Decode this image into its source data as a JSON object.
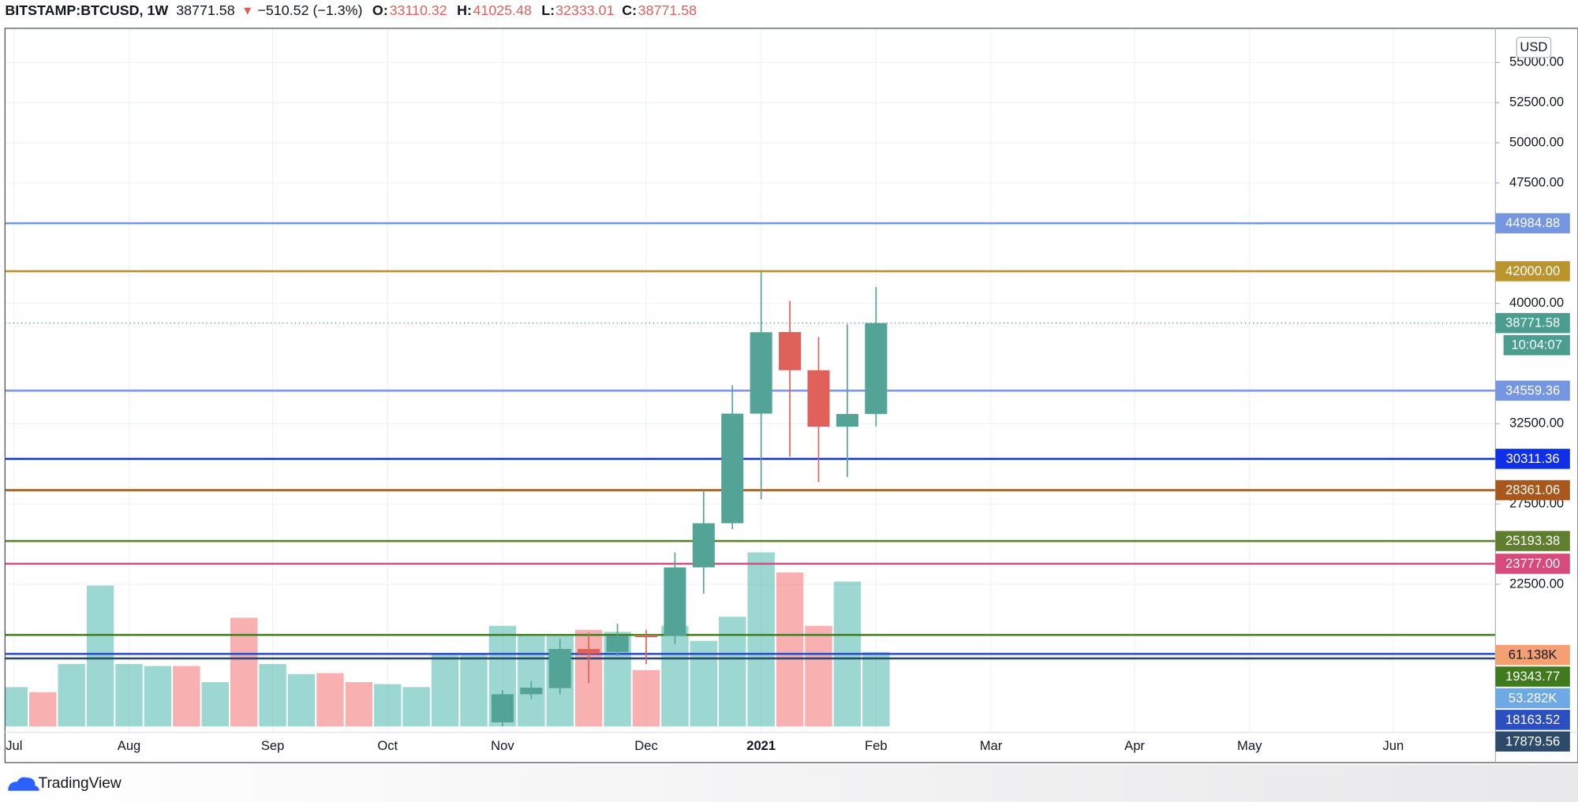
{
  "header": {
    "symbol": "BITSTAMP:BTCUSD, 1W",
    "arrow": "▼",
    "change": "−510.52 (−1.3%)",
    "o_label": "O:",
    "h_label": "H:",
    "l_label": "L:",
    "c_label": "C:"
  },
  "chart_data": {
    "type": "candlestick",
    "categories": [
      "Jul",
      null,
      null,
      null,
      "Aug",
      null,
      null,
      null,
      null,
      "Sep",
      null,
      null,
      null,
      "Oct",
      null,
      null,
      null,
      "Nov",
      null,
      null,
      null,
      null,
      "Dec",
      null,
      null,
      null,
      "2021",
      null,
      null,
      null,
      "Feb",
      null,
      null,
      null,
      "Mar",
      null,
      null,
      null,
      null,
      "Apr",
      null,
      null,
      null,
      "May",
      null,
      null,
      null,
      null,
      "Jun",
      null,
      null,
      null
    ],
    "open": [
      null,
      null,
      null,
      null,
      null,
      null,
      null,
      null,
      null,
      null,
      null,
      null,
      null,
      null,
      null,
      null,
      null,
      13900,
      15650,
      16030,
      18470,
      18280,
      19350,
      19290,
      23550,
      26300,
      33130,
      38210,
      35830,
      32320,
      33110.32,
      null,
      null,
      null,
      null,
      null,
      null,
      null,
      null,
      null,
      null,
      null,
      null,
      null,
      null,
      null,
      null,
      null,
      null,
      null,
      null,
      null
    ],
    "high": [
      null,
      null,
      null,
      null,
      null,
      null,
      null,
      null,
      null,
      null,
      null,
      null,
      null,
      null,
      null,
      null,
      null,
      15900,
      16460,
      19100,
      19480,
      20040,
      19660,
      24490,
      28370,
      34900,
      41970,
      40150,
      37900,
      38700,
      41025.48,
      null,
      null,
      null,
      null,
      null,
      null,
      null,
      null,
      null,
      null,
      null,
      null,
      null,
      null,
      null,
      null,
      null,
      null,
      null,
      null,
      null
    ],
    "low": [
      null,
      null,
      null,
      null,
      null,
      null,
      null,
      null,
      null,
      null,
      null,
      null,
      null,
      null,
      null,
      null,
      null,
      13650,
      15340,
      15650,
      16350,
      18030,
      17530,
      18780,
      21920,
      25930,
      27800,
      30440,
      28870,
      29190,
      32333.01,
      null,
      null,
      null,
      null,
      null,
      null,
      null,
      null,
      null,
      null,
      null,
      null,
      null,
      null,
      null,
      null,
      null,
      null,
      null,
      null,
      null
    ],
    "close": [
      null,
      null,
      null,
      null,
      null,
      null,
      null,
      null,
      null,
      null,
      null,
      null,
      null,
      null,
      null,
      null,
      null,
      15650,
      16060,
      18470,
      18180,
      19290,
      19200,
      23550,
      26300,
      33130,
      38200,
      35830,
      32320,
      33110,
      38771.58,
      null,
      null,
      null,
      null,
      null,
      null,
      null,
      null,
      null,
      null,
      null,
      null,
      null,
      null,
      null,
      null,
      null,
      null,
      null,
      null,
      null
    ],
    "volume": [
      39000,
      34000,
      62000,
      140000,
      62000,
      60000,
      60000,
      44000,
      108000,
      62000,
      52000,
      53000,
      44000,
      42000,
      39000,
      72000,
      72000,
      100000,
      90000,
      90000,
      96000,
      94000,
      56000,
      100000,
      85000,
      109000,
      173000,
      153000,
      100000,
      144000,
      74000,
      null,
      null,
      null,
      null,
      null,
      null,
      null,
      null,
      null,
      null,
      null,
      null,
      null,
      null,
      null,
      null,
      null,
      null,
      null,
      null,
      null
    ],
    "volume_colors": [
      "#26a69a",
      "#ef5350",
      "#26a69a",
      "#26a69a",
      "#26a69a",
      "#26a69a",
      "#ef5350",
      "#26a69a",
      "#ef5350",
      "#26a69a",
      "#26a69a",
      "#ef5350",
      "#ef5350",
      "#26a69a",
      "#26a69a",
      "#26a69a",
      "#26a69a",
      "#26a69a",
      "#26a69a",
      "#26a69a",
      "#ef5350",
      "#26a69a",
      "#ef5350",
      "#26a69a",
      "#26a69a",
      "#26a69a",
      "#26a69a",
      "#ef5350",
      "#ef5350",
      "#26a69a",
      "#26a69a",
      null,
      null,
      null,
      null,
      null,
      null,
      null,
      null,
      null,
      null,
      null,
      null,
      null,
      null,
      null,
      null,
      null,
      null,
      null,
      null,
      null
    ],
    "up_color": "#53a496",
    "down_color": "#e0605a",
    "current_color": "#4a9d8f",
    "ylim": [
      13270,
      57130
    ],
    "yticks": [
      {
        "value": 55000,
        "label": "55000.00"
      },
      {
        "value": 52500,
        "label": "52500.00"
      },
      {
        "value": 50000,
        "label": "50000.00"
      },
      {
        "value": 47500,
        "label": "47500.00"
      },
      {
        "value": 40000,
        "label": "40000.00"
      },
      {
        "value": 32500,
        "label": "32500.00"
      },
      {
        "value": 27500,
        "label": "27500.00"
      },
      {
        "value": 22500,
        "label": "22500.00"
      }
    ],
    "grid": true,
    "y_unit": "USD",
    "countdown": "10:04:07",
    "levels": [
      {
        "value": 44984.88,
        "color": "#7596e0"
      },
      {
        "value": {
          "value": 42000,
          "label": "42000.00"
        },
        "color": "#bb942c"
      },
      {
        "value": 34559.36,
        "color": "#7596e0"
      },
      {
        "value": 30311.36,
        "color": "#1030e8"
      },
      {
        "value": 28361.06,
        "color": "#a8581c"
      },
      {
        "value": 25193.38,
        "color": "#5f7f2e"
      },
      {
        "value": {
          "value": 23777,
          "label": "23777.00"
        },
        "color": "#d84a7c"
      },
      {
        "value": 19343.77,
        "color": "#3f7a1d"
      },
      {
        "value": 18163.52,
        "color": "#2c4fc0"
      },
      {
        "value": 17879.56,
        "color": "#2e4a6a"
      }
    ],
    "volume_profile_labels": [
      {
        "value": 61138,
        "label": "61.138K",
        "color": "#f4a070"
      },
      {
        "value": 53282,
        "label": "53.282K",
        "color": "#6ea9e4"
      }
    ]
  },
  "footer": {
    "brand": "TradingView"
  }
}
